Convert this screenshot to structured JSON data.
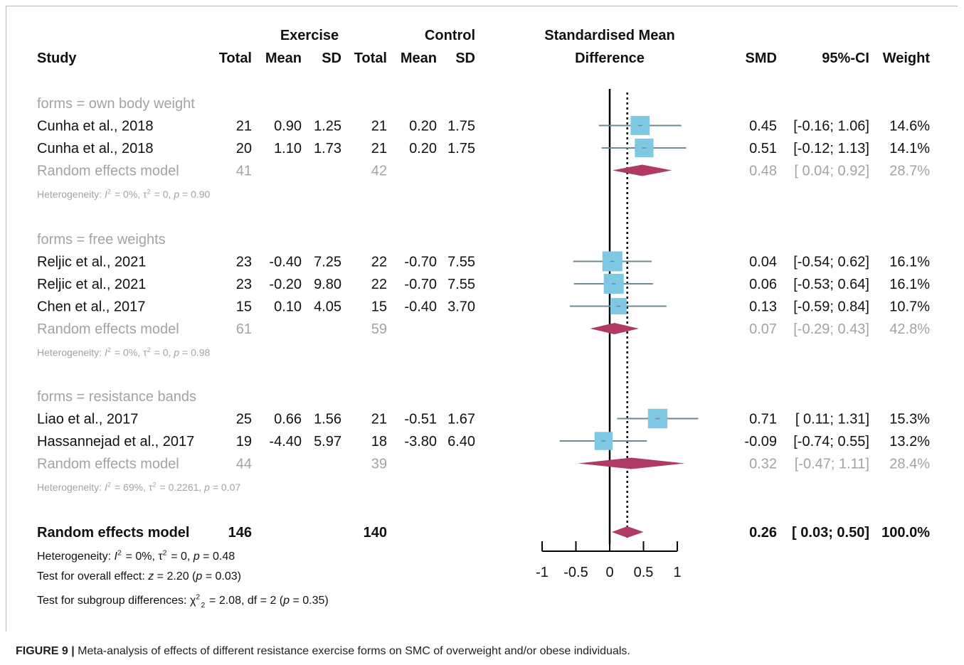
{
  "header": {
    "study": "Study",
    "group_exercise": "Exercise",
    "group_control": "Control",
    "total": "Total",
    "mean": "Mean",
    "sd": "SD",
    "effect_line1": "Standardised Mean",
    "effect_line2": "Difference",
    "smd": "SMD",
    "ci": "95%-CI",
    "weight": "Weight"
  },
  "colors": {
    "box": "#7ec8e3",
    "diamond": "#b03a66",
    "ci_line": "#6e8a93",
    "gray_text": "#a3a3a3"
  },
  "chart_data": {
    "type": "forest",
    "xlim": [
      -1,
      1
    ],
    "ticks": [
      "-1",
      "-0.5",
      "0",
      "0.5",
      "1"
    ],
    "tick_values": [
      -1,
      -0.5,
      0,
      0.5,
      1
    ],
    "reference_line": 0,
    "overall_line": 0.26,
    "subgroups": [
      {
        "label": "forms = own body weight",
        "studies": [
          {
            "study": "Cunha  et al., 2018",
            "e_total": "21",
            "e_mean": "0.90",
            "e_sd": "1.25",
            "c_total": "21",
            "c_mean": "0.20",
            "c_sd": "1.75",
            "smd_text": "0.45",
            "ci_text": "[-0.16; 1.06]",
            "weight_text": "14.6%",
            "smd": 0.45,
            "lower": -0.16,
            "upper": 1.06,
            "weight": 14.6
          },
          {
            "study": "Cunha  et al., 2018",
            "e_total": "20",
            "e_mean": "1.10",
            "e_sd": "1.73",
            "c_total": "21",
            "c_mean": "0.20",
            "c_sd": "1.75",
            "smd_text": "0.51",
            "ci_text": "[-0.12; 1.13]",
            "weight_text": "14.1%",
            "smd": 0.51,
            "lower": -0.12,
            "upper": 1.13,
            "weight": 14.1
          }
        ],
        "pooled": {
          "label": "Random effects model",
          "e_total": "41",
          "c_total": "42",
          "smd_text": "0.48",
          "ci_text": "[ 0.04; 0.92]",
          "weight_text": "28.7%",
          "smd": 0.48,
          "lower": 0.04,
          "upper": 0.92
        },
        "heterogeneity": "Heterogeneity: I² = 0%, τ² = 0, p = 0.90"
      },
      {
        "label": "forms = free weights",
        "studies": [
          {
            "study": "Reljic et al., 2021",
            "e_total": "23",
            "e_mean": "-0.40",
            "e_sd": "7.25",
            "c_total": "22",
            "c_mean": "-0.70",
            "c_sd": "7.55",
            "smd_text": "0.04",
            "ci_text": "[-0.54; 0.62]",
            "weight_text": "16.1%",
            "smd": 0.04,
            "lower": -0.54,
            "upper": 0.62,
            "weight": 16.1
          },
          {
            "study": "Reljic et al., 2021",
            "e_total": "23",
            "e_mean": "-0.20",
            "e_sd": "9.80",
            "c_total": "22",
            "c_mean": "-0.70",
            "c_sd": "7.55",
            "smd_text": "0.06",
            "ci_text": "[-0.53; 0.64]",
            "weight_text": "16.1%",
            "smd": 0.06,
            "lower": -0.53,
            "upper": 0.64,
            "weight": 16.1
          },
          {
            "study": "Chen et al., 2017",
            "e_total": "15",
            "e_mean": "0.10",
            "e_sd": "4.05",
            "c_total": "15",
            "c_mean": "-0.40",
            "c_sd": "3.70",
            "smd_text": "0.13",
            "ci_text": "[-0.59; 0.84]",
            "weight_text": "10.7%",
            "smd": 0.13,
            "lower": -0.59,
            "upper": 0.84,
            "weight": 10.7
          }
        ],
        "pooled": {
          "label": "Random effects model",
          "e_total": "61",
          "c_total": "59",
          "smd_text": "0.07",
          "ci_text": "[-0.29; 0.43]",
          "weight_text": "42.8%",
          "smd": 0.07,
          "lower": -0.29,
          "upper": 0.43
        },
        "heterogeneity": "Heterogeneity: I² = 0%, τ² = 0, p = 0.98"
      },
      {
        "label": "forms = resistance bands",
        "studies": [
          {
            "study": "Liao et al., 2017",
            "e_total": "25",
            "e_mean": "0.66",
            "e_sd": "1.56",
            "c_total": "21",
            "c_mean": "-0.51",
            "c_sd": "1.67",
            "smd_text": "0.71",
            "ci_text": "[ 0.11; 1.31]",
            "weight_text": "15.3%",
            "smd": 0.71,
            "lower": 0.11,
            "upper": 1.31,
            "weight": 15.3
          },
          {
            "study": "Hassannejad et al., 2017",
            "e_total": "19",
            "e_mean": "-4.40",
            "e_sd": "5.97",
            "c_total": "18",
            "c_mean": "-3.80",
            "c_sd": "6.40",
            "smd_text": "-0.09",
            "ci_text": "[-0.74; 0.55]",
            "weight_text": "13.2%",
            "smd": -0.09,
            "lower": -0.74,
            "upper": 0.55,
            "weight": 13.2
          }
        ],
        "pooled": {
          "label": "Random effects model",
          "e_total": "44",
          "c_total": "39",
          "smd_text": "0.32",
          "ci_text": "[-0.47; 1.11]",
          "weight_text": "28.4%",
          "smd": 0.32,
          "lower": -0.47,
          "upper": 1.11
        },
        "heterogeneity": "Heterogeneity: I² = 69%, τ² = 0.2261, p = 0.07"
      }
    ],
    "overall": {
      "label": "Random effects model",
      "e_total": "146",
      "c_total": "140",
      "smd_text": "0.26",
      "ci_text": "[ 0.03; 0.50]",
      "weight_text": "100.0%",
      "smd": 0.26,
      "lower": 0.03,
      "upper": 0.5
    },
    "footer": [
      "Heterogeneity: I² = 0%, τ² = 0, p = 0.48",
      "Test for overall effect: z = 2.20 (p = 0.03)",
      "Test for subgroup differences: χ²₂ = 2.08, df = 2 (p = 0.35)"
    ]
  },
  "caption": {
    "label": "FIGURE 9 |",
    "text": " Meta-analysis of effects of different resistance exercise forms on SMC of overweight and/or obese individuals."
  }
}
